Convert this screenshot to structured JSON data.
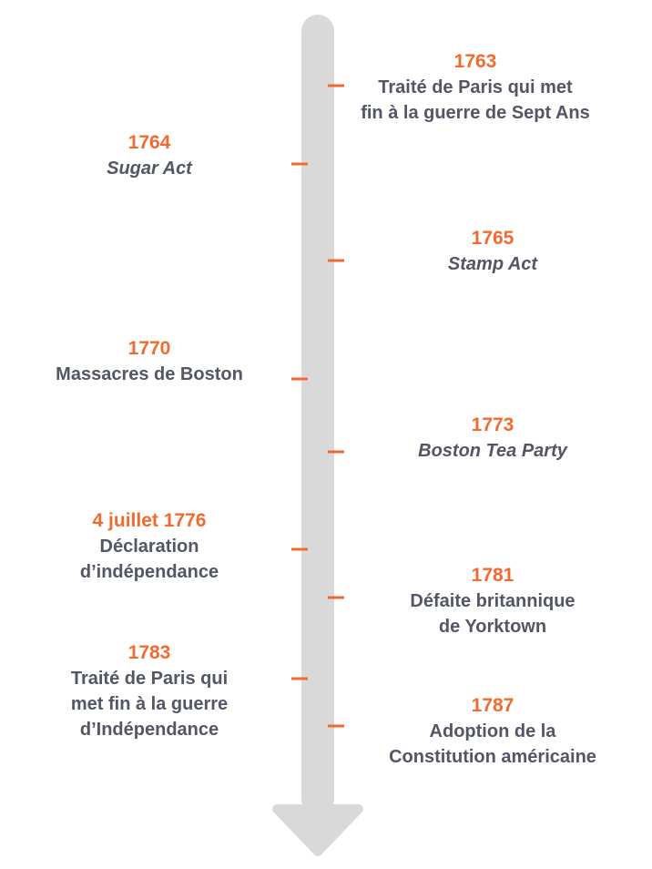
{
  "colors": {
    "axis": "#d9d9d9",
    "tick": "#f26a2e",
    "year": "#f26a2e",
    "text": "#525666"
  },
  "events": [
    {
      "id": "1763",
      "year": "1763",
      "label": "Traité de Paris qui met\nfin à la guerre de Sept Ans",
      "side": "right",
      "italic": false
    },
    {
      "id": "1764",
      "year": "1764",
      "label": "Sugar Act",
      "side": "left",
      "italic": true
    },
    {
      "id": "1765",
      "year": "1765",
      "label": "Stamp Act",
      "side": "right",
      "italic": true
    },
    {
      "id": "1770",
      "year": "1770",
      "label": "Massacres de Boston",
      "side": "left",
      "italic": false
    },
    {
      "id": "1773",
      "year": "1773",
      "label": "Boston Tea Party",
      "side": "right",
      "italic": true
    },
    {
      "id": "1776",
      "year": "4 juillet 1776",
      "label": "Déclaration\nd’indépendance",
      "side": "left",
      "italic": false
    },
    {
      "id": "1781",
      "year": "1781",
      "label": "Défaite britannique\nde Yorktown",
      "side": "right",
      "italic": false
    },
    {
      "id": "1783",
      "year": "1783",
      "label": "Traité de Paris qui\nmet fin à la guerre\nd’Indépendance",
      "side": "left",
      "italic": false
    },
    {
      "id": "1787",
      "year": "1787",
      "label": "Adoption de la\nConstitution américaine",
      "side": "right",
      "italic": false
    }
  ]
}
